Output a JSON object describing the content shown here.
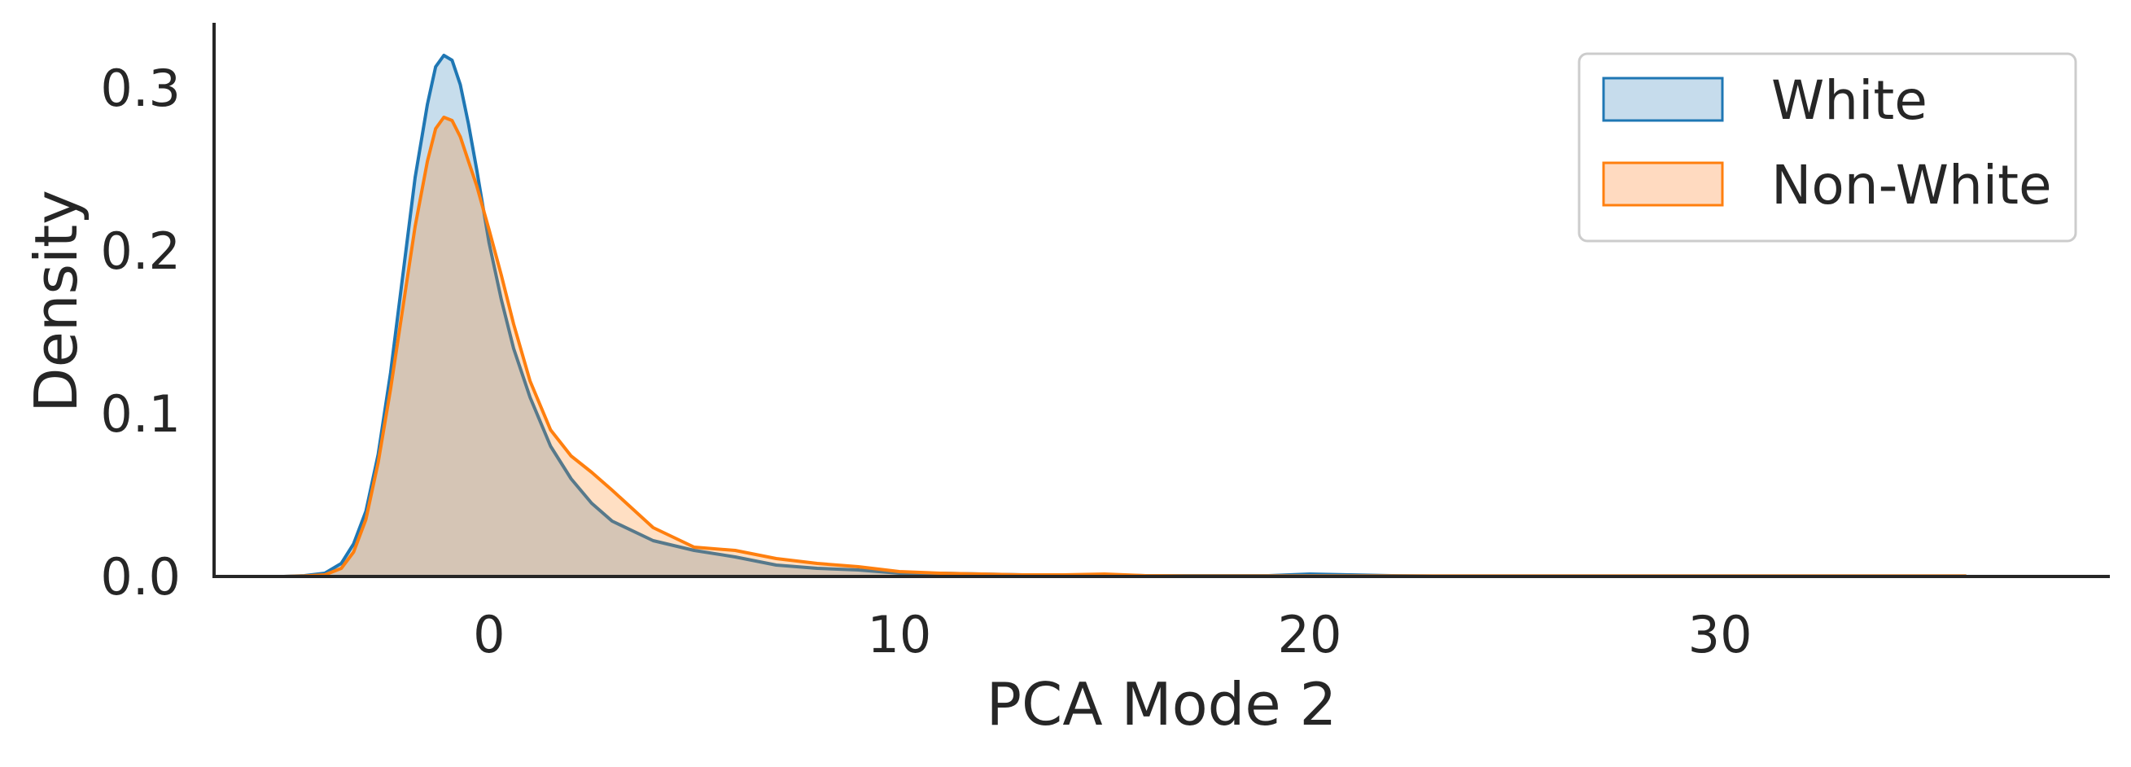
{
  "chart_data": {
    "type": "area",
    "title": "",
    "xlabel": "PCA Mode 2",
    "ylabel": "Density",
    "xlim": [
      -6.7,
      39.5
    ],
    "ylim": [
      0,
      0.34
    ],
    "xticks": [
      0,
      10,
      20,
      30
    ],
    "yticks": [
      0.0,
      0.1,
      0.2,
      0.3
    ],
    "xtick_labels": [
      "0",
      "10",
      "20",
      "30"
    ],
    "ytick_labels": [
      "0.0",
      "0.1",
      "0.2",
      "0.3"
    ],
    "grid": false,
    "legend_position": "top-right",
    "series": [
      {
        "name": "White",
        "color": "#1f77b4",
        "fill": "#c6dcec",
        "x": [
          -5,
          -4.5,
          -4,
          -3.6,
          -3.3,
          -3,
          -2.7,
          -2.4,
          -2.1,
          -1.8,
          -1.5,
          -1.3,
          -1.1,
          -0.9,
          -0.7,
          -0.5,
          -0.3,
          0,
          0.3,
          0.6,
          1,
          1.5,
          2,
          2.5,
          3,
          4,
          5,
          6,
          7,
          8,
          9,
          10,
          11,
          12,
          13,
          14,
          15,
          16,
          17,
          18,
          19,
          20,
          21,
          22,
          23,
          24,
          25,
          26,
          27,
          28,
          29,
          30,
          31,
          32,
          33,
          34,
          35,
          36
        ],
        "y": [
          0.0,
          0.0005,
          0.002,
          0.008,
          0.02,
          0.04,
          0.075,
          0.125,
          0.185,
          0.245,
          0.29,
          0.313,
          0.32,
          0.317,
          0.302,
          0.278,
          0.25,
          0.205,
          0.17,
          0.14,
          0.11,
          0.08,
          0.06,
          0.045,
          0.034,
          0.022,
          0.016,
          0.012,
          0.007,
          0.005,
          0.004,
          0.002,
          0.002,
          0.0015,
          0.001,
          0.001,
          0.001,
          0.0005,
          0.0005,
          0.0005,
          0.0005,
          0.0015,
          0.001,
          0.0005,
          0.0003,
          0.0003,
          0.0003,
          0.0003,
          0.0003,
          0.0003,
          0.0003,
          0.0003,
          0.0003,
          0.0003,
          0.0003,
          0.0003,
          0.0003,
          0.0003
        ]
      },
      {
        "name": "Non-White",
        "color": "#ff7f0e",
        "fill": "#ffdac0",
        "x": [
          -5,
          -4.5,
          -4,
          -3.6,
          -3.3,
          -3,
          -2.7,
          -2.4,
          -2.1,
          -1.8,
          -1.5,
          -1.3,
          -1.1,
          -0.9,
          -0.7,
          -0.5,
          -0.3,
          0,
          0.3,
          0.6,
          1,
          1.5,
          2,
          2.5,
          3,
          4,
          5,
          6,
          7,
          8,
          9,
          10,
          11,
          12,
          13,
          14,
          15,
          16,
          17,
          18,
          19,
          20,
          21,
          22,
          23,
          24,
          25,
          26,
          27,
          28,
          29,
          30,
          31,
          32,
          33,
          34,
          35,
          36
        ],
        "y": [
          0.0,
          0.0003,
          0.001,
          0.005,
          0.015,
          0.035,
          0.07,
          0.115,
          0.165,
          0.215,
          0.255,
          0.275,
          0.282,
          0.28,
          0.27,
          0.255,
          0.24,
          0.213,
          0.185,
          0.155,
          0.12,
          0.09,
          0.074,
          0.064,
          0.053,
          0.03,
          0.018,
          0.016,
          0.011,
          0.008,
          0.006,
          0.003,
          0.002,
          0.0015,
          0.001,
          0.001,
          0.0015,
          0.0005,
          0.0003,
          0.0003,
          0.0003,
          0.0003,
          0.0003,
          0.0003,
          0.0003,
          0.0003,
          0.0003,
          0.0003,
          0.0003,
          0.0003,
          0.0003,
          0.0003,
          0.0003,
          0.0003,
          0.0003,
          0.0003,
          0.0003,
          0.0003
        ]
      }
    ]
  }
}
